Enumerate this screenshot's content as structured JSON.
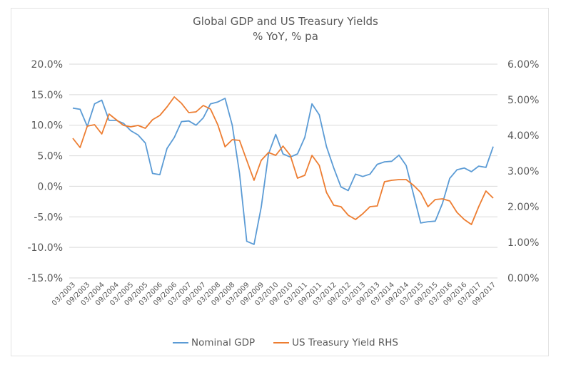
{
  "chart_data": {
    "type": "line",
    "title": "Global GDP and US Treasury Yields",
    "subtitle": "% YoY, % pa",
    "xlabel": "",
    "ylabel": "",
    "y2label": "",
    "ylim": [
      -15,
      20
    ],
    "y2lim": [
      0,
      6
    ],
    "yticks": [
      "20.0%",
      "15.0%",
      "10.0%",
      "5.0%",
      "0.0%",
      "-5.0%",
      "-10.0%",
      "-15.0%"
    ],
    "ytick_values": [
      20,
      15,
      10,
      5,
      0,
      -5,
      -10,
      -15
    ],
    "y2ticks": [
      "6.00%",
      "5.00%",
      "4.00%",
      "3.00%",
      "2.00%",
      "1.00%",
      "0.00%"
    ],
    "y2tick_values": [
      6,
      5,
      4,
      3,
      2,
      1,
      0
    ],
    "grid": true,
    "legend_position": "bottom",
    "xtick_labels": [
      "03/2003",
      "09/2003",
      "03/2004",
      "09/2004",
      "03/2005",
      "09/2005",
      "03/2006",
      "09/2006",
      "03/2007",
      "09/2007",
      "03/2008",
      "09/2008",
      "03/2009",
      "09/2009",
      "03/2010",
      "09/2010",
      "03/2011",
      "09/2011",
      "03/2012",
      "09/2012",
      "03/2013",
      "09/2013",
      "03/2014",
      "09/2014",
      "03/2015",
      "09/2015",
      "03/2016",
      "09/2016",
      "03/2017",
      "09/2017"
    ],
    "x_points": 59,
    "series": [
      {
        "name": "Nominal GDP",
        "axis": "left",
        "color": "#5b9bd5",
        "values": [
          12.8,
          12.6,
          9.8,
          13.5,
          14.1,
          10.8,
          10.8,
          10.3,
          9.1,
          8.4,
          7.1,
          2.1,
          1.9,
          6.2,
          8.0,
          10.6,
          10.7,
          10.0,
          11.2,
          13.5,
          13.8,
          14.4,
          10.0,
          2.1,
          -9.0,
          -9.5,
          -3.4,
          5.3,
          8.5,
          5.3,
          4.8,
          5.3,
          8.0,
          13.5,
          11.7,
          6.5,
          3.0,
          -0.1,
          -0.7,
          2.0,
          1.6,
          2.0,
          3.6,
          4.0,
          4.1,
          5.1,
          3.4,
          -1.3,
          -6.0,
          -5.8,
          -5.7,
          -2.8,
          1.3,
          2.7,
          3.0,
          2.4,
          3.3,
          3.1,
          6.5
        ]
      },
      {
        "name": "US Treasury Yield RHS",
        "axis": "right",
        "color": "#ed7d31",
        "values": [
          3.92,
          3.66,
          4.26,
          4.3,
          4.04,
          4.6,
          4.44,
          4.28,
          4.24,
          4.28,
          4.2,
          4.44,
          4.56,
          4.8,
          5.08,
          4.9,
          4.64,
          4.66,
          4.84,
          4.74,
          4.3,
          3.68,
          3.88,
          3.86,
          3.3,
          2.74,
          3.3,
          3.52,
          3.44,
          3.7,
          3.44,
          2.8,
          2.88,
          3.44,
          3.16,
          2.4,
          2.04,
          2.0,
          1.76,
          1.64,
          1.8,
          2.0,
          2.02,
          2.7,
          2.74,
          2.76,
          2.76,
          2.6,
          2.4,
          2.0,
          2.2,
          2.22,
          2.16,
          1.84,
          1.64,
          1.5,
          2.0,
          2.44,
          2.24
        ]
      }
    ]
  }
}
